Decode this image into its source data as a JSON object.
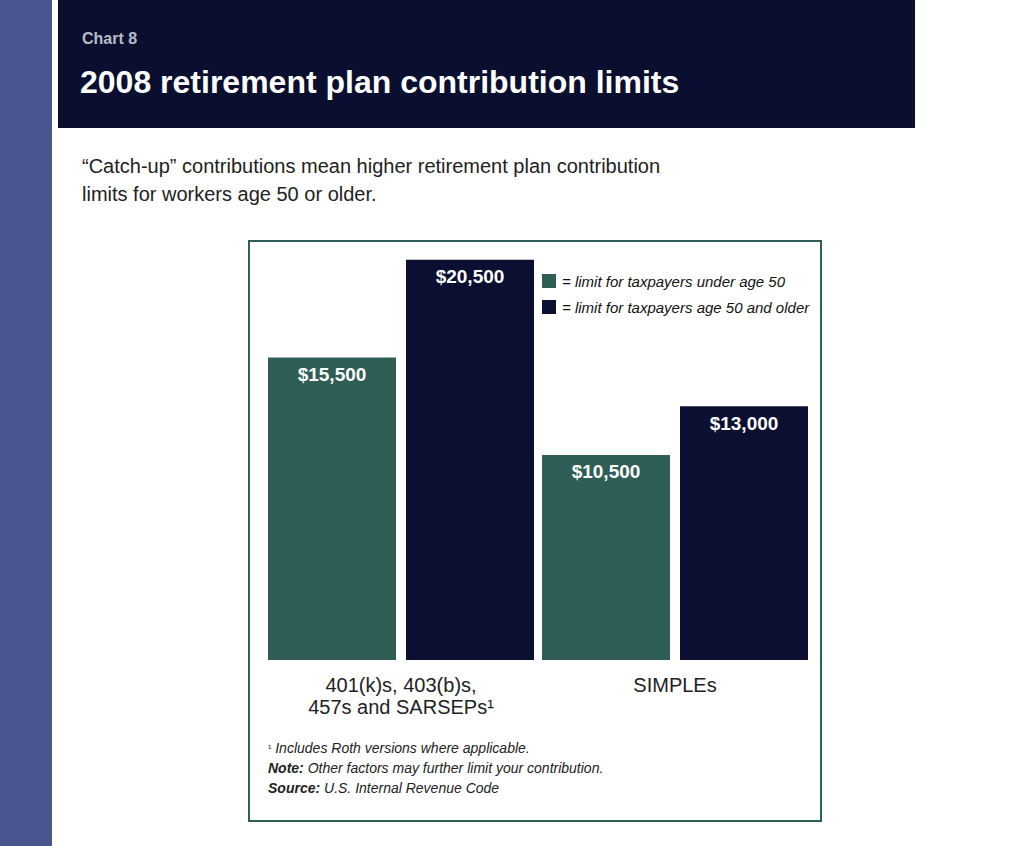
{
  "chart_data": {
    "type": "bar",
    "chart_label": "Chart 8",
    "title": "2008 retirement plan contribution limits",
    "subtitle": "“Catch-up” contributions mean higher retirement plan contribution limits for workers age 50 or older.",
    "categories": [
      "401(k)s, 403(b)s, 457s and SARSEPs¹",
      "SIMPLEs"
    ],
    "series": [
      {
        "name": "= limit for taxpayers under age 50",
        "color": "#2e5e56",
        "values": [
          15500,
          10500
        ],
        "value_labels": [
          "$15,500",
          "$10,500"
        ]
      },
      {
        "name": "= limit for taxpayers age 50 and older",
        "color": "#0b1033",
        "values": [
          20500,
          13000
        ],
        "value_labels": [
          "$20,500",
          "$13,000"
        ]
      }
    ],
    "ylim": [
      0,
      21000
    ],
    "tick_labels": false,
    "grid": false,
    "legend": "top-right",
    "data_labels": true,
    "footnotes": [
      {
        "label": "¹",
        "text": "Includes Roth versions where applicable."
      },
      {
        "label": "Note:",
        "text": "Other factors may further limit your contribution."
      },
      {
        "label": "Source:",
        "text": "U.S. Internal Revenue Code"
      }
    ]
  }
}
